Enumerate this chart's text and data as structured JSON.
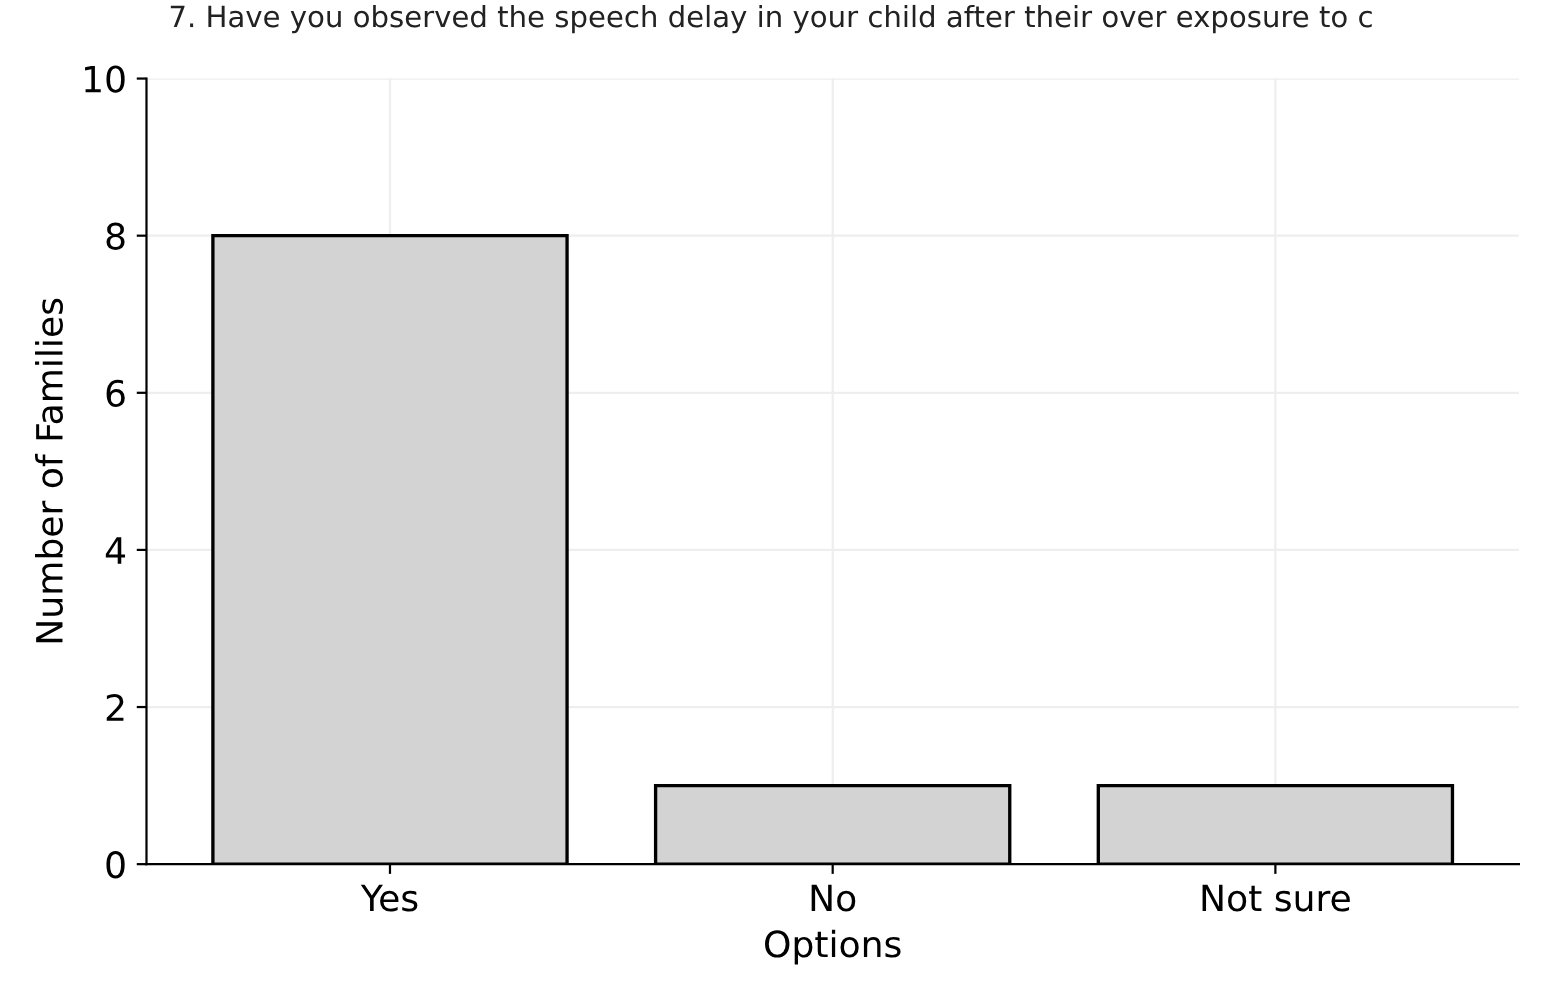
{
  "chart_data": {
    "type": "bar",
    "title": "7. Have you observed the speech delay in your child after their over exposure to c",
    "xlabel": "Options",
    "ylabel": "Number of Families",
    "categories": [
      "Yes",
      "No",
      "Not sure"
    ],
    "values": [
      8,
      1,
      1
    ],
    "color": "#d3d3d3",
    "ylim": [
      0,
      10
    ],
    "yticks": [
      0,
      2,
      4,
      6,
      8,
      10
    ],
    "grid": true
  }
}
